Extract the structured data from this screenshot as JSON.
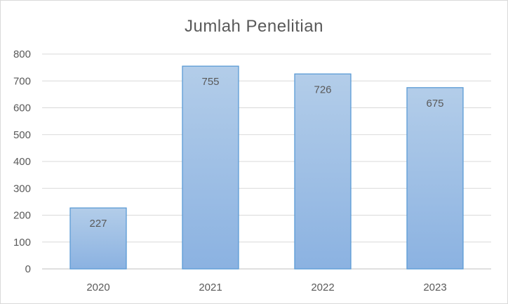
{
  "chart_data": {
    "type": "bar",
    "title": "Jumlah Penelitian",
    "categories": [
      "2020",
      "2021",
      "2022",
      "2023"
    ],
    "values": [
      227,
      755,
      726,
      675
    ],
    "y_ticks": [
      "0",
      "100",
      "200",
      "300",
      "400",
      "500",
      "600",
      "700",
      "800"
    ],
    "ylim": [
      0,
      800
    ],
    "xlabel": "",
    "ylabel": "",
    "grid": true,
    "legend": "none",
    "data_labels": true,
    "colors": {
      "bar_top": "#b3cde9",
      "bar_bottom": "#8bb2e1",
      "bar_border": "#5b9bd5",
      "text": "#595959",
      "grid": "#d9d9d9"
    }
  }
}
